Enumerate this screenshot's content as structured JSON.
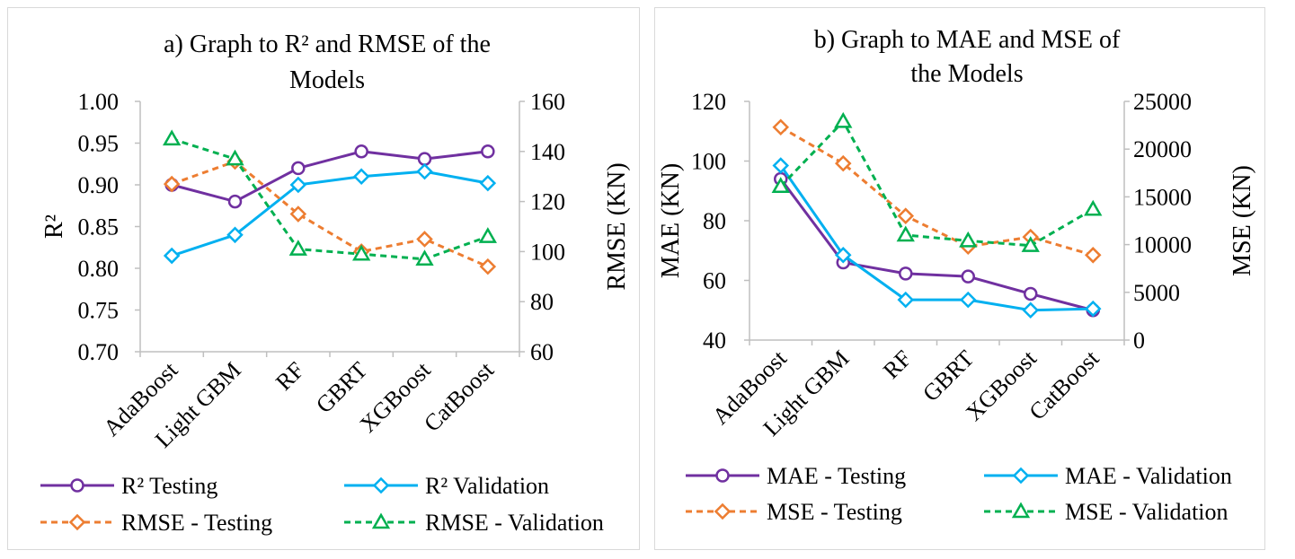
{
  "colors": {
    "purple": "#7030A0",
    "blue": "#00B0F0",
    "orange": "#ED7D31",
    "green": "#00B050",
    "axis": "#bfbfbf"
  },
  "chart_data": [
    {
      "type": "line",
      "title": [
        "a) Graph to R² and RMSE of the",
        "Models"
      ],
      "categories": [
        "AdaBoost",
        "Light GBM",
        "RF",
        "GBRT",
        "XGBoost",
        "CatBoost"
      ],
      "ylabel": "R²",
      "y2label": "RMSE (KN)",
      "ylim": [
        0.7,
        1.0
      ],
      "y2lim": [
        60,
        160
      ],
      "yticks": [
        "0.70",
        "0.75",
        "0.80",
        "0.85",
        "0.90",
        "0.95",
        "1.00"
      ],
      "y2ticks": [
        "60",
        "80",
        "100",
        "120",
        "140",
        "160"
      ],
      "grid": false,
      "legend_position": "bottom",
      "series": [
        {
          "name": "R² Testing",
          "axis": "left",
          "color": "#7030A0",
          "dash": false,
          "marker": "circle",
          "values": [
            0.9,
            0.88,
            0.92,
            0.94,
            0.931,
            0.94
          ]
        },
        {
          "name": "R² Validation",
          "axis": "left",
          "color": "#00B0F0",
          "dash": false,
          "marker": "diamond",
          "values": [
            0.815,
            0.84,
            0.9,
            0.91,
            0.916,
            0.902
          ]
        },
        {
          "name": "RMSE - Testing",
          "axis": "right",
          "color": "#ED7D31",
          "dash": true,
          "marker": "diamond",
          "values": [
            127,
            136,
            115,
            100,
            105,
            94
          ]
        },
        {
          "name": "RMSE - Validation",
          "axis": "right",
          "color": "#00B050",
          "dash": true,
          "marker": "triangle",
          "values": [
            145,
            137,
            101,
            99,
            97,
            106
          ]
        }
      ]
    },
    {
      "type": "line",
      "title": [
        "b) Graph to MAE and MSE of",
        "the Models"
      ],
      "categories": [
        "AdaBoost",
        "Light GBM",
        "RF",
        "GBRT",
        "XGBoost",
        "CatBoost"
      ],
      "ylabel": "MAE (KN)",
      "y2label": "MSE (KN)",
      "ylim": [
        40,
        120
      ],
      "y2lim": [
        0,
        25000
      ],
      "yticks": [
        "40",
        "60",
        "80",
        "100",
        "120"
      ],
      "y2ticks": [
        "0",
        "5000",
        "10000",
        "15000",
        "20000",
        "25000"
      ],
      "grid": false,
      "legend_position": "bottom",
      "series": [
        {
          "name": "MAE - Testing",
          "axis": "left",
          "color": "#7030A0",
          "dash": false,
          "marker": "circle",
          "values": [
            94,
            66,
            62.3,
            61.3,
            55.5,
            50
          ]
        },
        {
          "name": "MAE - Validation",
          "axis": "left",
          "color": "#00B0F0",
          "dash": false,
          "marker": "diamond",
          "values": [
            98.5,
            68.5,
            53.5,
            53.5,
            50,
            50.5
          ]
        },
        {
          "name": "MSE - Testing",
          "axis": "right",
          "color": "#ED7D31",
          "dash": true,
          "marker": "diamond",
          "values": [
            22300,
            18500,
            13000,
            9800,
            10800,
            8900
          ]
        },
        {
          "name": "MSE - Validation",
          "axis": "right",
          "color": "#00B050",
          "dash": true,
          "marker": "triangle",
          "values": [
            16100,
            22900,
            11000,
            10400,
            9900,
            13700
          ]
        }
      ]
    }
  ]
}
